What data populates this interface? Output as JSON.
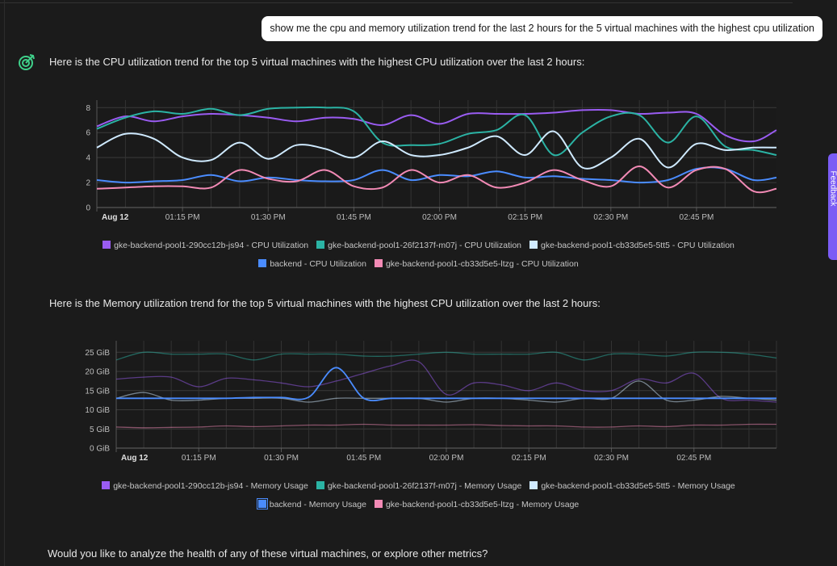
{
  "conversation": {
    "user_message": "show me the cpu and memory utilization trend for the last 2 hours for the 5 virtual machines with the highest cpu utilization",
    "cpu_intro": "Here is the CPU utilization trend for the top 5 virtual machines with the highest CPU utilization over the last 2 hours:",
    "memory_intro": "Here is the Memory utilization trend for the top 5 virtual machines with the highest CPU utilization over the last 2 hours:",
    "followup": "Would you like to analyze the health of any of these virtual machines, or explore other metrics?"
  },
  "feedback_tab": {
    "label": "Feedback"
  },
  "colors": {
    "purple": "#9a5cf2",
    "teal": "#2bb3a4",
    "lightblue": "#cfeaff",
    "blue": "#4a8cff",
    "pink": "#f28ab5"
  },
  "chart_data": [
    {
      "type": "line",
      "title": "CPU Utilization",
      "xlabel": "",
      "ylabel": "",
      "x_ticks": [
        "Aug 12",
        "01:15 PM",
        "01:30 PM",
        "01:45 PM",
        "02:00 PM",
        "02:15 PM",
        "02:30 PM",
        "02:45 PM"
      ],
      "x_tick_minutes": [
        0,
        15,
        30,
        45,
        60,
        75,
        90,
        105
      ],
      "y_ticks": [
        "0",
        "2",
        "4",
        "6",
        "8"
      ],
      "ylim": [
        0,
        8.6
      ],
      "xlim_minutes": [
        0,
        119
      ],
      "grid": true,
      "x_minutes": [
        0,
        5,
        10,
        15,
        20,
        25,
        30,
        35,
        40,
        45,
        50,
        55,
        60,
        65,
        70,
        75,
        80,
        85,
        90,
        95,
        100,
        105,
        110,
        115,
        119
      ],
      "series": [
        {
          "name": "gke-backend-pool1-290cc12b-js94 - CPU Utilization",
          "color": "purple",
          "values": [
            6.5,
            7.3,
            6.9,
            7.3,
            7.5,
            7.4,
            7.2,
            6.9,
            7.2,
            7.1,
            6.6,
            7.4,
            6.7,
            7.5,
            7.5,
            7.5,
            7.6,
            7.8,
            7.8,
            7.5,
            7.6,
            7.5,
            5.8,
            5.3,
            6.2
          ]
        },
        {
          "name": "gke-backend-pool1-26f2137f-m07j - CPU Utilization",
          "color": "teal",
          "values": [
            6.3,
            7.2,
            7.7,
            7.5,
            7.9,
            7.4,
            7.9,
            8.0,
            8.0,
            7.7,
            5.2,
            5.0,
            5.1,
            5.9,
            6.2,
            7.4,
            4.2,
            6.0,
            7.3,
            7.4,
            5.2,
            7.3,
            4.9,
            4.6,
            4.2
          ]
        },
        {
          "name": "gke-backend-pool1-cb33d5e5-5tt5 - CPU Utilization",
          "color": "lightblue",
          "values": [
            4.8,
            5.9,
            5.5,
            4.0,
            3.8,
            5.2,
            3.9,
            5.0,
            4.7,
            4.0,
            5.3,
            4.2,
            4.2,
            4.8,
            5.7,
            4.2,
            6.1,
            3.2,
            4.0,
            5.5,
            3.2,
            5.1,
            4.6,
            4.8,
            4.8
          ]
        },
        {
          "name": "backend - CPU Utilization",
          "color": "blue",
          "values": [
            2.2,
            2.0,
            2.1,
            2.2,
            2.6,
            2.1,
            2.4,
            2.2,
            2.1,
            2.2,
            3.0,
            2.2,
            2.6,
            2.5,
            2.9,
            2.4,
            2.5,
            2.3,
            2.2,
            2.0,
            2.2,
            3.1,
            3.1,
            2.2,
            2.4
          ]
        },
        {
          "name": "gke-backend-pool1-cb33d5e5-ltzg - CPU Utilization",
          "color": "pink",
          "values": [
            1.5,
            1.6,
            1.7,
            1.7,
            1.6,
            3.0,
            2.3,
            2.1,
            3.0,
            1.7,
            1.6,
            3.0,
            2.0,
            2.6,
            1.6,
            2.0,
            3.0,
            2.2,
            1.7,
            3.3,
            1.6,
            3.0,
            3.1,
            1.3,
            1.5
          ]
        }
      ]
    },
    {
      "type": "line",
      "title": "Memory Usage",
      "xlabel": "",
      "ylabel": "",
      "x_ticks": [
        "Aug 12",
        "01:15 PM",
        "01:30 PM",
        "01:45 PM",
        "02:00 PM",
        "02:15 PM",
        "02:30 PM",
        "02:45 PM"
      ],
      "x_tick_minutes": [
        0,
        15,
        30,
        45,
        60,
        75,
        90,
        105
      ],
      "y_ticks": [
        "0 GiB",
        "5 GiB",
        "10 GiB",
        "15 GiB",
        "20 GiB",
        "25 GiB"
      ],
      "ylim": [
        0,
        28
      ],
      "xlim_minutes": [
        0,
        120
      ],
      "grid": true,
      "x_minutes": [
        0,
        5,
        10,
        15,
        20,
        25,
        30,
        35,
        40,
        45,
        50,
        55,
        60,
        65,
        70,
        75,
        80,
        85,
        90,
        95,
        100,
        105,
        110,
        115,
        120
      ],
      "series": [
        {
          "name": "gke-backend-pool1-290cc12b-js94 - Memory Usage",
          "color": "purple",
          "values": [
            18,
            18.5,
            18.5,
            16,
            18.2,
            17.8,
            17,
            16,
            17.5,
            19.5,
            21.5,
            22.5,
            14,
            17,
            16.5,
            15,
            17,
            15,
            15,
            18,
            17,
            19.5,
            13,
            12.5,
            12
          ]
        },
        {
          "name": "gke-backend-pool1-26f2137f-m07j - Memory Usage",
          "color": "teal",
          "values": [
            23,
            25,
            24.5,
            24.5,
            24.5,
            23,
            24.5,
            24.5,
            24.5,
            24,
            24,
            24.5,
            25,
            24.5,
            24.5,
            24.5,
            25,
            23,
            24.5,
            24.5,
            24,
            25,
            25,
            24.5,
            23.5
          ]
        },
        {
          "name": "gke-backend-pool1-cb33d5e5-5tt5 - Memory Usage",
          "color": "lightblue",
          "values": [
            13,
            14.5,
            12.5,
            12.5,
            13,
            13,
            13,
            12,
            13,
            13,
            13,
            13,
            12,
            13,
            13,
            12.5,
            12,
            13,
            13,
            17.5,
            12.5,
            12.5,
            13.5,
            13,
            12.5
          ]
        },
        {
          "name": "backend - Memory Usage",
          "color": "blue",
          "values": [
            13,
            13,
            13,
            13,
            13,
            13.2,
            13.2,
            13.3,
            21,
            13,
            13,
            13,
            13,
            13,
            13,
            13,
            13,
            13,
            13,
            13,
            13,
            13,
            13,
            13,
            13
          ]
        },
        {
          "name": "gke-backend-pool1-cb33d5e5-ltzg - Memory Usage",
          "color": "pink",
          "values": [
            5.5,
            5.3,
            5.4,
            5.5,
            5.8,
            5.6,
            5.8,
            6.0,
            6.0,
            6.2,
            6.0,
            6.0,
            6.0,
            6.1,
            5.9,
            5.8,
            5.8,
            5.5,
            5.5,
            5.8,
            5.6,
            6.0,
            6.0,
            6.2,
            6.2
          ]
        }
      ]
    }
  ]
}
